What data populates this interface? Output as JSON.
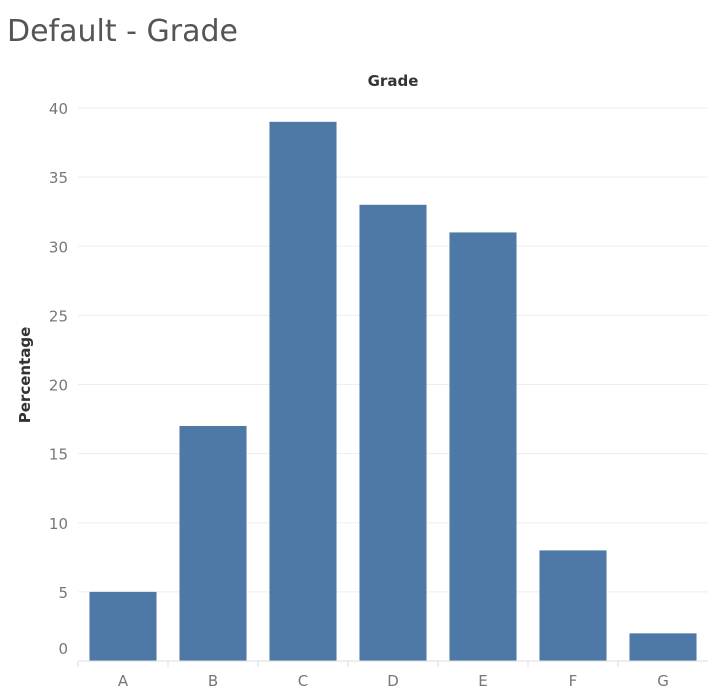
{
  "page": {
    "title": "Default - Grade"
  },
  "colors": {
    "bar": "#4e79a7"
  },
  "chart_data": {
    "type": "bar",
    "title": "",
    "xlabel": "Grade",
    "ylabel": "Percentage",
    "categories": [
      "A",
      "B",
      "C",
      "D",
      "E",
      "F",
      "G"
    ],
    "values": [
      5,
      17,
      39,
      33,
      31,
      8,
      2
    ],
    "ylim": [
      0,
      40
    ],
    "yticks": [
      0,
      5,
      10,
      15,
      20,
      25,
      30,
      35,
      40
    ],
    "grid": true,
    "xlabel_position": "top",
    "legend": "none"
  }
}
